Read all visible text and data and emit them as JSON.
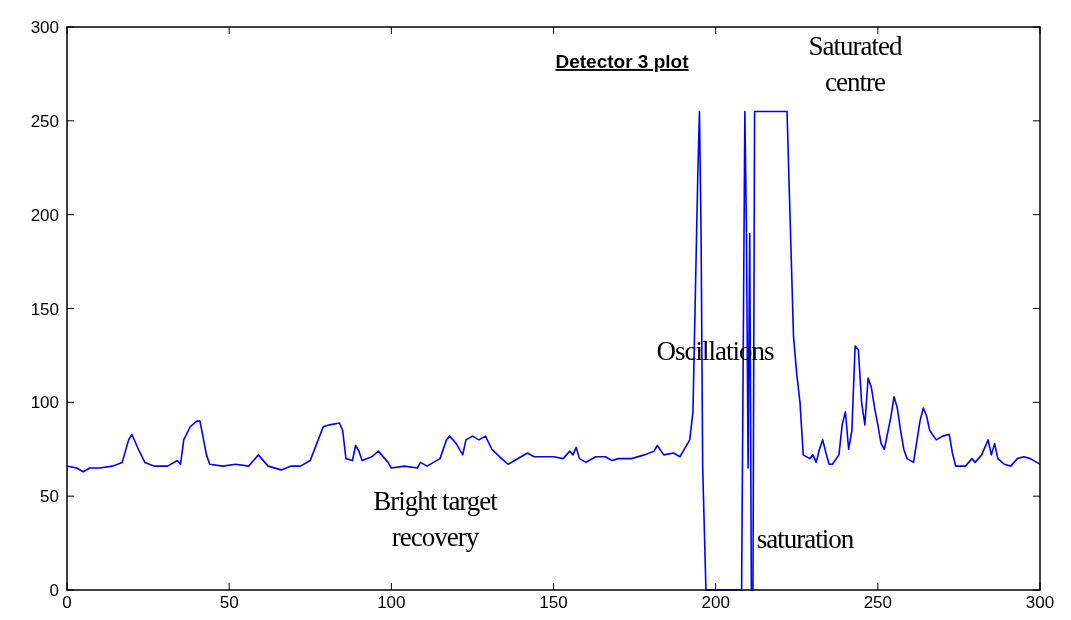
{
  "chart_data": {
    "type": "line",
    "title": "Detector 3 plot",
    "x": [
      0,
      3,
      5,
      7,
      10,
      14,
      17,
      19,
      20,
      22,
      24,
      27,
      31,
      34,
      35,
      36,
      38,
      40,
      41,
      43,
      44,
      48,
      52,
      56,
      59,
      60,
      62,
      66,
      69,
      72,
      75,
      77,
      79,
      81,
      84,
      85,
      86,
      88,
      89,
      90,
      91,
      94,
      96,
      97,
      99,
      100,
      104,
      108,
      109,
      111,
      113,
      115,
      117,
      118,
      120,
      122,
      123,
      125,
      127,
      129,
      131,
      134,
      136,
      138,
      140,
      142,
      144,
      147,
      150,
      153,
      155,
      156,
      157,
      158,
      160,
      163,
      166,
      168,
      170,
      174,
      178,
      181,
      182,
      184,
      187,
      189,
      190,
      192,
      193,
      194,
      194.5,
      195,
      195.5,
      196,
      197,
      208,
      209,
      209.5,
      210,
      210.5,
      211,
      211.5,
      212,
      217,
      222,
      223,
      224,
      225,
      226,
      227,
      229,
      230,
      231,
      232,
      233,
      234,
      235,
      236,
      238,
      239,
      240,
      241,
      242,
      243,
      244,
      245,
      246,
      247,
      248,
      249,
      250,
      251,
      252,
      254,
      255,
      256,
      257,
      258,
      259,
      261,
      263,
      264,
      265,
      266,
      268,
      270,
      272,
      273,
      274,
      277,
      279,
      280,
      282,
      283,
      284,
      285,
      286,
      287,
      289,
      291,
      293,
      295,
      297,
      299,
      300
    ],
    "series": [
      {
        "color": "#0000ff",
        "values": [
          66,
          65,
          63,
          65,
          65,
          66,
          68,
          80,
          83,
          75,
          68,
          66,
          66,
          69,
          67,
          80,
          87,
          90,
          90,
          72,
          67,
          66,
          67,
          66,
          72,
          70,
          66,
          64,
          66,
          66,
          69,
          78,
          87,
          88,
          89,
          85,
          70,
          69,
          77,
          74,
          69,
          71,
          74,
          72,
          68,
          65,
          66,
          65,
          68,
          66,
          68,
          70,
          80,
          82,
          78,
          72,
          80,
          82,
          80,
          82,
          75,
          70,
          67,
          69,
          71,
          73,
          71,
          71,
          71,
          70,
          74,
          72,
          76,
          70,
          68,
          71,
          71,
          69,
          70,
          70,
          72,
          74,
          77,
          72,
          73,
          71,
          74,
          80,
          95,
          180,
          222,
          255,
          190,
          65,
          0,
          0,
          255,
          190,
          65,
          190,
          0,
          0,
          255,
          255,
          255,
          195,
          135,
          115,
          100,
          72,
          70,
          72,
          68,
          75,
          80,
          73,
          67,
          67,
          72,
          88,
          95,
          75,
          85,
          130,
          128,
          100,
          88,
          113,
          108,
          97,
          88,
          78,
          75,
          92,
          103,
          97,
          85,
          75,
          70,
          68,
          90,
          97,
          93,
          85,
          80,
          82,
          83,
          73,
          66,
          66,
          70,
          68,
          72,
          76,
          80,
          72,
          78,
          70,
          67,
          66,
          70,
          71,
          70,
          68,
          67
        ]
      }
    ],
    "xlim": [
      0,
      300
    ],
    "xticks": [
      0,
      50,
      100,
      150,
      200,
      250,
      300
    ],
    "ylim": [
      0,
      300
    ],
    "yticks": [
      0,
      50,
      100,
      150,
      200,
      250,
      300
    ],
    "grid": false,
    "line_style": "solid",
    "marker": "none",
    "annotations": [
      "Saturated\ncentre",
      "Oscillations",
      "Bright target\nrecovery",
      "saturation"
    ]
  }
}
